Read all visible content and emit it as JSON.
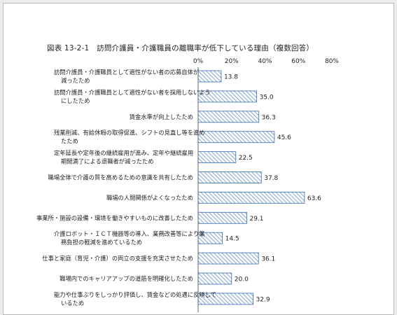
{
  "page_title": "図表 13-2-1　訪問介護員・介護職員の離職率が低下している理由（複数回答）",
  "chart_data": {
    "type": "bar",
    "orientation": "horizontal",
    "title": "図表 13-2-1　訪問介護員・介護職員の離職率が低下している理由（複数回答）",
    "xlabel": "",
    "ylabel": "",
    "xlim": [
      0,
      80
    ],
    "x_ticks": [
      "0%",
      "20%",
      "40%",
      "60%",
      "80%"
    ],
    "x_tick_values": [
      0,
      20,
      40,
      60,
      80
    ],
    "grid": false,
    "bar_fill": "diagonal-hatch",
    "colors": {
      "bar_stroke": "#4a7ab8",
      "hatch": "#7fa6d4",
      "axis": "#666666"
    },
    "categories": [
      [
        "訪問介護員・介護職員として適性がない者の応募自体が",
        "減ったため"
      ],
      [
        "訪問介護員・介護職員として適性がない者を採用しないよう",
        "にしたため"
      ],
      [
        "賃金水準が向上したため"
      ],
      [
        "残業削減、有給休暇の取得促進、シフトの見直し等を進め",
        "たため"
      ],
      [
        "定年延長や定年後の継続雇用が進み、定年や継続雇用",
        "期間満了による退職者が減ったため"
      ],
      [
        "職場全体で介護の質を高めるための意識を共有したため"
      ],
      [
        "職場の人間関係がよくなったため"
      ],
      [
        "事業所・施設の設備・環境を働きやすいものに改善したため"
      ],
      [
        "介護ロボット・ＩＣＴ機器等の導入、業務改善等により業",
        "務負担の軽減を進めているため"
      ],
      [
        "仕事と家庭（育児・介護）の両立の支援を充実させたため"
      ],
      [
        "職場内でのキャリアアップの道筋を明確化したため"
      ],
      [
        "能力や仕事ぶりをしっかり評価し、賃金などの処遇に反映して",
        "いるため"
      ]
    ],
    "values": [
      13.8,
      35.0,
      36.3,
      45.6,
      22.5,
      37.8,
      63.6,
      29.1,
      14.5,
      36.1,
      20.0,
      32.9
    ],
    "value_labels": [
      "13.8",
      "35.0",
      "36.3",
      "45.6",
      "22.5",
      "37.8",
      "63.6",
      "29.1",
      "14.5",
      "36.1",
      "20.0",
      "32.9"
    ]
  }
}
